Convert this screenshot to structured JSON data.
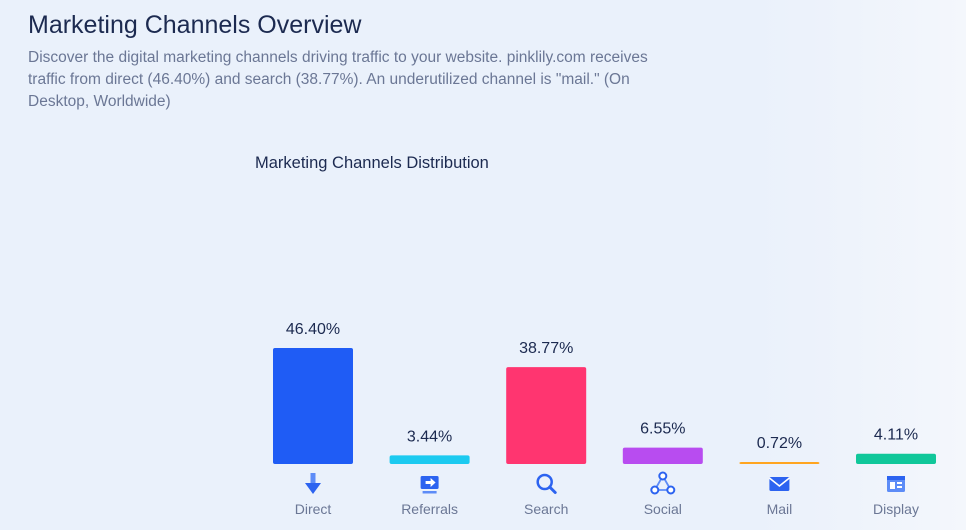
{
  "header": {
    "title": "Marketing Channels Overview",
    "description": "Discover the digital marketing channels driving traffic to your website. pinklily.com receives traffic from direct (46.40%) and search (38.77%). An underutilized channel is \"mail.\" (On Desktop, Worldwide)"
  },
  "chart_data": {
    "type": "bar",
    "title": "Marketing Channels Distribution",
    "xlabel": "",
    "ylabel": "",
    "categories": [
      "Direct",
      "Referrals",
      "Search",
      "Social",
      "Mail",
      "Display"
    ],
    "values": [
      46.4,
      3.44,
      38.77,
      6.55,
      0.72,
      4.11
    ],
    "value_labels": [
      "46.40%",
      "3.44%",
      "38.77%",
      "6.55%",
      "0.72%",
      "4.11%"
    ],
    "colors": [
      "#1f5cf5",
      "#1ccaf0",
      "#ff3570",
      "#b84cf0",
      "#ffa51f",
      "#10c79a"
    ],
    "icons": [
      "direct-arrow-icon",
      "referrals-icon",
      "search-icon",
      "social-icon",
      "mail-icon",
      "display-icon"
    ],
    "ylim": [
      0,
      46.4
    ],
    "grid": false,
    "legend": "none"
  }
}
